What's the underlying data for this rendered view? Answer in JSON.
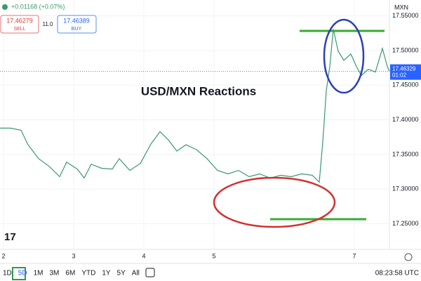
{
  "header": {
    "change": "+0.01168 (+0.07%)",
    "sell_price": "17.46279",
    "sell_label": "SELL",
    "spread": "11.0",
    "buy_price": "17.46389",
    "buy_label": "BUY"
  },
  "chart_data": {
    "type": "line",
    "title": "USD/MXN Reactions",
    "currency": "MXN",
    "color": "#3a9a6e",
    "x": [
      1.95,
      2.1,
      2.25,
      2.35,
      2.5,
      2.65,
      2.8,
      2.9,
      3.05,
      3.15,
      3.25,
      3.4,
      3.55,
      3.65,
      3.8,
      3.95,
      4.1,
      4.23,
      4.35,
      4.47,
      4.6,
      4.75,
      4.9,
      5.05,
      5.2,
      5.35,
      5.5,
      5.65,
      5.8,
      5.95,
      6.1,
      6.25,
      6.4,
      6.5,
      6.55,
      6.6,
      6.65,
      6.7,
      6.77,
      6.85,
      6.95,
      7.03,
      7.1,
      7.2,
      7.3,
      7.4,
      7.47,
      7.5
    ],
    "values": [
      17.388,
      17.388,
      17.385,
      17.364,
      17.344,
      17.333,
      17.318,
      17.339,
      17.329,
      17.316,
      17.336,
      17.33,
      17.329,
      17.344,
      17.327,
      17.337,
      17.365,
      17.383,
      17.371,
      17.355,
      17.364,
      17.357,
      17.344,
      17.327,
      17.322,
      17.327,
      17.318,
      17.322,
      17.316,
      17.32,
      17.318,
      17.322,
      17.32,
      17.31,
      17.368,
      17.442,
      17.477,
      17.531,
      17.499,
      17.486,
      17.495,
      17.477,
      17.464,
      17.473,
      17.469,
      17.503,
      17.477,
      17.47
    ],
    "xlim": [
      1.95,
      7.5
    ],
    "xticks": [
      2,
      3,
      4,
      5,
      7
    ],
    "ylim": [
      17.213,
      17.573
    ],
    "yticks": [
      {
        "value": 17.25,
        "label": "17.25000"
      },
      {
        "value": 17.3,
        "label": "17.30000"
      },
      {
        "value": 17.35,
        "label": "17.35000"
      },
      {
        "value": 17.4,
        "label": "17.40000"
      },
      {
        "value": 17.45,
        "label": "17.45000"
      },
      {
        "value": 17.5,
        "label": "17.50000"
      },
      {
        "value": 17.55,
        "label": "17.55000"
      }
    ],
    "grid": true,
    "last_price": "17.46329",
    "countdown": "01:02"
  },
  "toolbar": {
    "ranges": [
      "1D",
      "5D",
      "1M",
      "3M",
      "6M",
      "YTD",
      "1Y",
      "5Y",
      "All"
    ],
    "active": "5D",
    "time": "08:23:58 UTC"
  }
}
